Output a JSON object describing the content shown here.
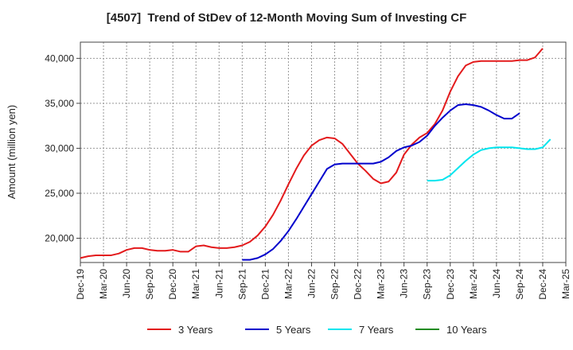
{
  "chart_data": {
    "type": "line",
    "title": "[4507]  Trend of StDev of 12-Month Moving Sum of Investing CF",
    "ylabel": "Amount (million yen)",
    "xlabel": "",
    "ylim": [
      17300,
      41800
    ],
    "yticks": [
      20000,
      25000,
      30000,
      35000,
      40000
    ],
    "ytick_labels": [
      "20,000",
      "25,000",
      "30,000",
      "35,000",
      "40,000"
    ],
    "xtick_labels": [
      "Dec-19",
      "Mar-20",
      "Jun-20",
      "Sep-20",
      "Dec-20",
      "Mar-21",
      "Jun-21",
      "Sep-21",
      "Dec-21",
      "Mar-22",
      "Jun-22",
      "Sep-22",
      "Dec-22",
      "Mar-23",
      "Jun-23",
      "Sep-23",
      "Dec-23",
      "Mar-24",
      "Jun-24",
      "Sep-24",
      "Dec-24",
      "Mar-25"
    ],
    "grid": true,
    "legend_position": "bottom",
    "series": [
      {
        "name": "3 Years",
        "color": "#e31a1c",
        "start_index": 0,
        "values": [
          17800,
          18000,
          18100,
          18100,
          18100,
          18300,
          18700,
          18900,
          18900,
          18700,
          18600,
          18600,
          18700,
          18500,
          18500,
          19100,
          19200,
          19000,
          18900,
          18900,
          19000,
          19200,
          19600,
          20300,
          21300,
          22600,
          24200,
          26000,
          27700,
          29200,
          30300,
          30900,
          31200,
          31100,
          30500,
          29400,
          28300,
          27500,
          26600,
          26100,
          26300,
          27300,
          29300,
          30400,
          31200,
          31700,
          32700,
          34200,
          36300,
          38000,
          39200,
          39600,
          39700,
          39700,
          39700,
          39700,
          39700,
          39800,
          39800,
          40100,
          41100
        ]
      },
      {
        "name": "5 Years",
        "color": "#0000cc",
        "start_index": 21,
        "values": [
          17600,
          17600,
          17800,
          18200,
          18800,
          19700,
          20800,
          22100,
          23500,
          24900,
          26300,
          27700,
          28200,
          28300,
          28300,
          28300,
          28300,
          28300,
          28500,
          29000,
          29700,
          30100,
          30300,
          30700,
          31400,
          32500,
          33400,
          34200,
          34800,
          34900,
          34800,
          34600,
          34200,
          33700,
          33300,
          33300,
          33900
        ]
      },
      {
        "name": "7 Years",
        "color": "#00e5ee",
        "start_index": 45,
        "values": [
          26400,
          26400,
          26500,
          27000,
          27800,
          28600,
          29300,
          29800,
          30000,
          30100,
          30100,
          30100,
          30000,
          29900,
          29900,
          30100,
          31000
        ]
      },
      {
        "name": "10 Years",
        "color": "#228b22",
        "start_index": 0,
        "values": []
      }
    ]
  }
}
